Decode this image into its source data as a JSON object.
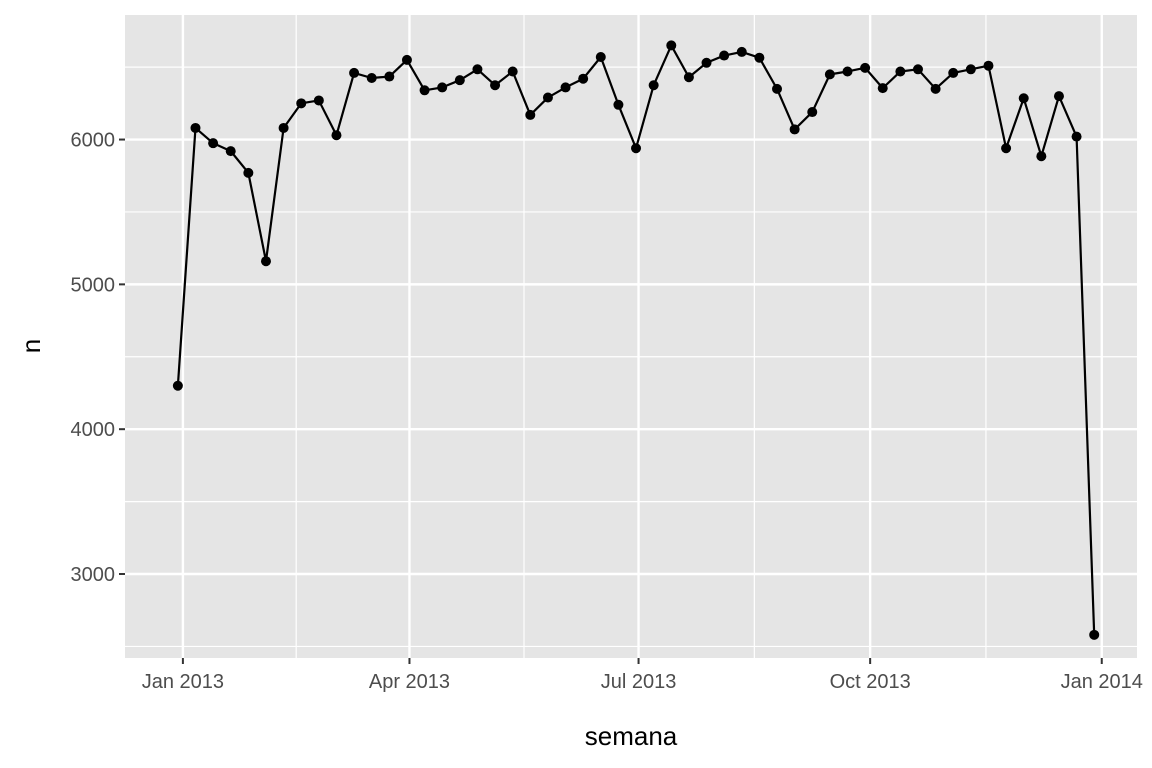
{
  "chart_data": {
    "type": "line",
    "title": "",
    "xlabel": "semana",
    "ylabel": "n",
    "x_ticks": [
      {
        "date": "2013-01-01",
        "label": "Jan 2013"
      },
      {
        "date": "2013-04-01",
        "label": "Apr 2013"
      },
      {
        "date": "2013-07-01",
        "label": "Jul 2013"
      },
      {
        "date": "2013-10-01",
        "label": "Oct 2013"
      },
      {
        "date": "2014-01-01",
        "label": "Jan 2014"
      }
    ],
    "y_ticks": [
      3000,
      4000,
      5000,
      6000
    ],
    "xlim": [
      "2012-12-09",
      "2014-01-15"
    ],
    "ylim": [
      2420,
      6860
    ],
    "grid": true,
    "legend": "none",
    "colors": {
      "panel": "#e5e5e5",
      "grid": "#ffffff",
      "line": "#000000",
      "point": "#000000"
    },
    "series": [
      {
        "x": [
          "2012-12-30",
          "2013-01-06",
          "2013-01-13",
          "2013-01-20",
          "2013-01-27",
          "2013-02-03",
          "2013-02-10",
          "2013-02-17",
          "2013-02-24",
          "2013-03-03",
          "2013-03-10",
          "2013-03-17",
          "2013-03-24",
          "2013-03-31",
          "2013-04-07",
          "2013-04-14",
          "2013-04-21",
          "2013-04-28",
          "2013-05-05",
          "2013-05-12",
          "2013-05-19",
          "2013-05-26",
          "2013-06-02",
          "2013-06-09",
          "2013-06-16",
          "2013-06-23",
          "2013-06-30",
          "2013-07-07",
          "2013-07-14",
          "2013-07-21",
          "2013-07-28",
          "2013-08-04",
          "2013-08-11",
          "2013-08-18",
          "2013-08-25",
          "2013-09-01",
          "2013-09-08",
          "2013-09-15",
          "2013-09-22",
          "2013-09-29",
          "2013-10-06",
          "2013-10-13",
          "2013-10-20",
          "2013-10-27",
          "2013-11-03",
          "2013-11-10",
          "2013-11-17",
          "2013-11-24",
          "2013-12-01",
          "2013-12-08",
          "2013-12-15",
          "2013-12-22",
          "2013-12-29"
        ],
        "values": [
          4300,
          6080,
          5975,
          5920,
          5770,
          5160,
          6080,
          6250,
          6270,
          6030,
          6460,
          6425,
          6435,
          6550,
          6340,
          6360,
          6410,
          6485,
          6375,
          6470,
          6170,
          6290,
          6360,
          6420,
          6570,
          6240,
          5940,
          6375,
          6650,
          6430,
          6530,
          6580,
          6605,
          6565,
          6350,
          6070,
          6190,
          6450,
          6470,
          6495,
          6355,
          6470,
          6485,
          6350,
          6460,
          6485,
          6510,
          5940,
          6285,
          5885,
          6300,
          6020,
          2580
        ]
      }
    ]
  }
}
